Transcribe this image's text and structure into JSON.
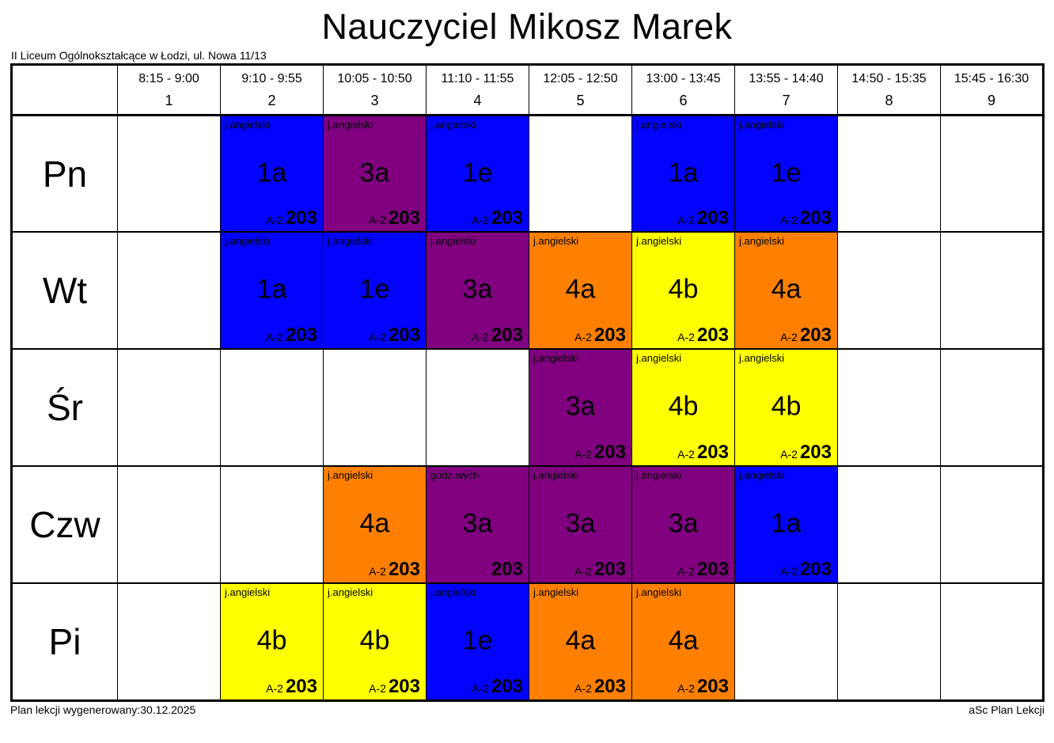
{
  "title": "Nauczyciel Mikosz Marek",
  "school": "II Liceum Ogólnokształcące w Łodzi, ul. Nowa 11/13",
  "footer": {
    "generated": "Plan lekcji wygenerowany:30.12.2025",
    "brand": "aSc Plan Lekcji"
  },
  "colors": {
    "blue": "#0202ff",
    "purple": "#800080",
    "orange": "#ff8000",
    "yellow": "#ffff00"
  },
  "periods": [
    {
      "time": "8:15 - 9:00",
      "number": "1"
    },
    {
      "time": "9:10 - 9:55",
      "number": "2"
    },
    {
      "time": "10:05 - 10:50",
      "number": "3"
    },
    {
      "time": "11:10 - 11:55",
      "number": "4"
    },
    {
      "time": "12:05 - 12:50",
      "number": "5"
    },
    {
      "time": "13:00 - 13:45",
      "number": "6"
    },
    {
      "time": "13:55 - 14:40",
      "number": "7"
    },
    {
      "time": "14:50 - 15:35",
      "number": "8"
    },
    {
      "time": "15:45 - 16:30",
      "number": "9"
    }
  ],
  "days": [
    {
      "label": "Pn",
      "key": "pn",
      "lessons": [
        null,
        {
          "subject": "j.angielski",
          "group": "1a",
          "room_prefix": "A-2",
          "room": "203",
          "color": "blue"
        },
        {
          "subject": "j.angielski",
          "group": "3a",
          "room_prefix": "A-2",
          "room": "203",
          "color": "purple"
        },
        {
          "subject": "j.angielski",
          "group": "1e",
          "room_prefix": "A-2",
          "room": "203",
          "color": "blue"
        },
        null,
        {
          "subject": "j.angielski",
          "group": "1a",
          "room_prefix": "A-2",
          "room": "203",
          "color": "blue"
        },
        {
          "subject": "j.angielski",
          "group": "1e",
          "room_prefix": "A-2",
          "room": "203",
          "color": "blue"
        },
        null,
        null
      ]
    },
    {
      "label": "Wt",
      "key": "wt",
      "lessons": [
        null,
        {
          "subject": "j.angielski",
          "group": "1a",
          "room_prefix": "A-2",
          "room": "203",
          "color": "blue"
        },
        {
          "subject": "j.angielski",
          "group": "1e",
          "room_prefix": "A-2",
          "room": "203",
          "color": "blue"
        },
        {
          "subject": "j.angielski",
          "group": "3a",
          "room_prefix": "A-2",
          "room": "203",
          "color": "purple"
        },
        {
          "subject": "j.angielski",
          "group": "4a",
          "room_prefix": "A-2",
          "room": "203",
          "color": "orange"
        },
        {
          "subject": "j.angielski",
          "group": "4b",
          "room_prefix": "A-2",
          "room": "203",
          "color": "yellow"
        },
        {
          "subject": "j.angielski",
          "group": "4a",
          "room_prefix": "A-2",
          "room": "203",
          "color": "orange"
        },
        null,
        null
      ]
    },
    {
      "label": "Śr",
      "key": "sr",
      "lessons": [
        null,
        null,
        null,
        null,
        {
          "subject": "j.angielski",
          "group": "3a",
          "room_prefix": "A-2",
          "room": "203",
          "color": "purple"
        },
        {
          "subject": "j.angielski",
          "group": "4b",
          "room_prefix": "A-2",
          "room": "203",
          "color": "yellow"
        },
        {
          "subject": "j.angielski",
          "group": "4b",
          "room_prefix": "A-2",
          "room": "203",
          "color": "yellow"
        },
        null,
        null
      ]
    },
    {
      "label": "Czw",
      "key": "czw",
      "lessons": [
        null,
        null,
        {
          "subject": "j.angielski",
          "group": "4a",
          "room_prefix": "A-2",
          "room": "203",
          "color": "orange"
        },
        {
          "subject": "godz.wych",
          "group": "3a",
          "room_prefix": "",
          "room": "203",
          "color": "purple"
        },
        {
          "subject": "j.angielski",
          "group": "3a",
          "room_prefix": "A-2",
          "room": "203",
          "color": "purple"
        },
        {
          "subject": "j.angielski",
          "group": "3a",
          "room_prefix": "A-2",
          "room": "203",
          "color": "purple"
        },
        {
          "subject": "j.angielski",
          "group": "1a",
          "room_prefix": "A-2",
          "room": "203",
          "color": "blue"
        },
        null,
        null
      ]
    },
    {
      "label": "Pi",
      "key": "pi",
      "lessons": [
        null,
        {
          "subject": "j.angielski",
          "group": "4b",
          "room_prefix": "A-2",
          "room": "203",
          "color": "yellow"
        },
        {
          "subject": "j.angielski",
          "group": "4b",
          "room_prefix": "A-2",
          "room": "203",
          "color": "yellow"
        },
        {
          "subject": "j.angielski",
          "group": "1e",
          "room_prefix": "A-2",
          "room": "203",
          "color": "blue"
        },
        {
          "subject": "j.angielski",
          "group": "4a",
          "room_prefix": "A-2",
          "room": "203",
          "color": "orange"
        },
        {
          "subject": "j.angielski",
          "group": "4a",
          "room_prefix": "A-2",
          "room": "203",
          "color": "orange"
        },
        null,
        null,
        null
      ]
    }
  ]
}
